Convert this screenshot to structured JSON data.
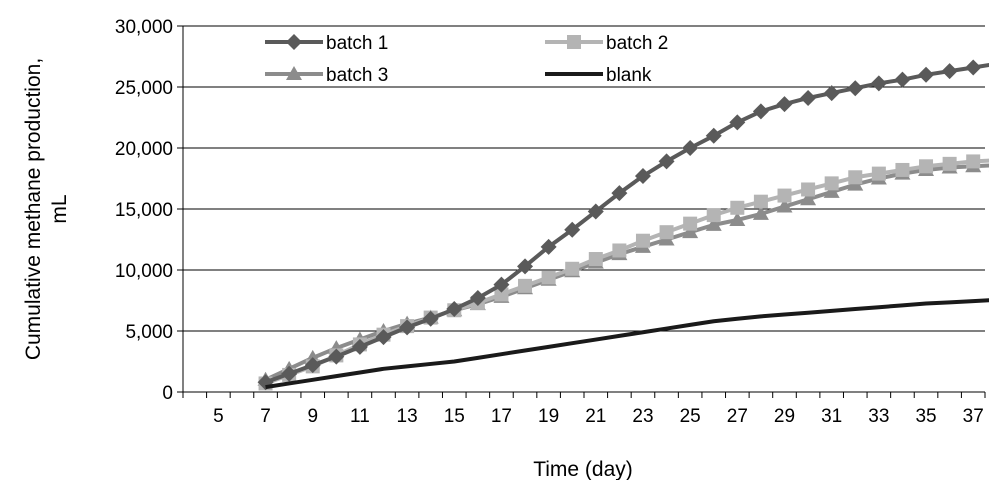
{
  "chart_data": {
    "type": "line",
    "title": "",
    "xlabel": "Time  (day)",
    "ylabel_lines": [
      "Cumulative methane production,",
      "mL"
    ],
    "xlim": [
      4,
      38
    ],
    "ylim": [
      0,
      30000
    ],
    "x_ticks": [
      5,
      7,
      9,
      11,
      13,
      15,
      17,
      19,
      21,
      23,
      25,
      27,
      29,
      31,
      33,
      35,
      37
    ],
    "y_ticks": [
      0,
      5000,
      10000,
      15000,
      20000,
      25000,
      30000
    ],
    "y_tick_labels": [
      "0",
      "5,000",
      "10,000",
      "15,000",
      "20,000",
      "25,000",
      "30,000"
    ],
    "grid": "horizontal",
    "legend_position": "top",
    "series": [
      {
        "name": "batch 1",
        "color": "#5a5a5a",
        "marker": "diamond",
        "x": [
          7,
          8,
          9,
          10,
          11,
          12,
          13,
          14,
          15,
          16,
          17,
          18,
          19,
          20,
          21,
          22,
          23,
          24,
          25,
          26,
          27,
          28,
          29,
          30,
          31,
          32,
          33,
          34,
          35,
          36,
          37,
          38
        ],
        "y": [
          800,
          1500,
          2200,
          2900,
          3700,
          4500,
          5300,
          6000,
          6800,
          7700,
          8800,
          10300,
          11900,
          13300,
          14800,
          16300,
          17700,
          18900,
          20000,
          21000,
          22100,
          23000,
          23600,
          24100,
          24500,
          24900,
          25300,
          25600,
          26000,
          26300,
          26600,
          26900
        ]
      },
      {
        "name": "batch 2",
        "color": "#b4b4b4",
        "marker": "square",
        "x": [
          7,
          8,
          9,
          10,
          11,
          12,
          13,
          14,
          15,
          16,
          17,
          18,
          19,
          20,
          21,
          22,
          23,
          24,
          25,
          26,
          27,
          28,
          29,
          30,
          31,
          32,
          33,
          34,
          35,
          36,
          37,
          38
        ],
        "y": [
          700,
          1400,
          2100,
          3000,
          3900,
          4700,
          5400,
          6100,
          6700,
          7300,
          8000,
          8700,
          9400,
          10100,
          10900,
          11600,
          12400,
          13100,
          13800,
          14500,
          15100,
          15600,
          16100,
          16600,
          17100,
          17600,
          17900,
          18200,
          18500,
          18700,
          18900,
          19000
        ]
      },
      {
        "name": "batch 3",
        "color": "#8c8c8c",
        "marker": "triangle",
        "x": [
          7,
          8,
          9,
          10,
          11,
          12,
          13,
          14,
          15,
          16,
          17,
          18,
          19,
          20,
          21,
          22,
          23,
          24,
          25,
          26,
          27,
          28,
          29,
          30,
          31,
          32,
          33,
          34,
          35,
          36,
          37,
          38
        ],
        "y": [
          1000,
          1900,
          2800,
          3600,
          4300,
          5000,
          5600,
          6100,
          6700,
          7200,
          7800,
          8500,
          9200,
          9900,
          10600,
          11300,
          11900,
          12500,
          13100,
          13700,
          14100,
          14600,
          15200,
          15800,
          16400,
          17000,
          17500,
          17900,
          18200,
          18400,
          18500,
          18600
        ]
      },
      {
        "name": "blank",
        "color": "#1a1a1a",
        "marker": "none",
        "x": [
          7,
          8,
          9,
          10,
          11,
          12,
          13,
          14,
          15,
          16,
          17,
          18,
          19,
          20,
          21,
          22,
          23,
          24,
          25,
          26,
          27,
          28,
          29,
          30,
          31,
          32,
          33,
          34,
          35,
          36,
          37,
          38
        ],
        "y": [
          400,
          700,
          1000,
          1300,
          1600,
          1900,
          2100,
          2300,
          2500,
          2800,
          3100,
          3400,
          3700,
          4000,
          4300,
          4600,
          4900,
          5200,
          5500,
          5800,
          6000,
          6200,
          6350,
          6500,
          6650,
          6800,
          6950,
          7100,
          7250,
          7350,
          7450,
          7550
        ]
      }
    ]
  }
}
